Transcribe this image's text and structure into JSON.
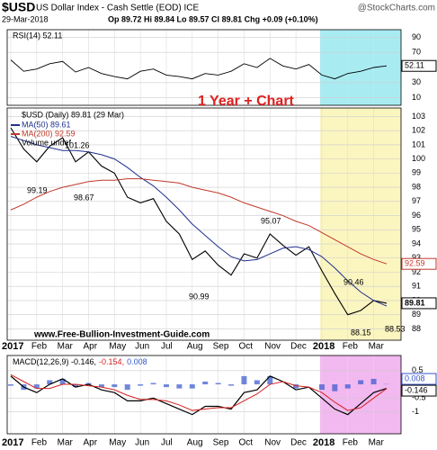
{
  "chart_data": {
    "type": "line",
    "header": {
      "symbol": "$USD",
      "name": "US Dollar Index - Cash Settle (EOD) ICE",
      "source": "@StockCharts.com",
      "date": "29-Mar-2018",
      "quote": "Op 89.72 Hi 89.84 Lo 89.57 Cl 89.81 Chg +0.09 (+0.10%)"
    },
    "categories": [
      "2017",
      null,
      "Feb",
      null,
      "Mar",
      null,
      "Apr",
      null,
      "May",
      null,
      "Jun",
      null,
      "Jul",
      null,
      "Aug",
      null,
      "Sep",
      null,
      "Oct",
      null,
      "Nov",
      null,
      "Dec",
      null,
      "2018",
      null,
      "Feb",
      null,
      "Mar",
      null
    ],
    "highlight_from": "2018",
    "rsi": {
      "legend": "RSI(14) 52.11",
      "color": "#000000",
      "values": [
        60,
        45,
        48,
        55,
        58,
        44,
        50,
        42,
        38,
        35,
        45,
        48,
        40,
        38,
        35,
        42,
        40,
        45,
        55,
        50,
        62,
        52,
        48,
        54,
        40,
        35,
        42,
        45,
        50,
        52.11
      ],
      "ylim": [
        0,
        100
      ],
      "yticks": [
        10,
        30,
        70,
        90
      ],
      "last_label": 52.11,
      "highlight_color": "#a8ecf2"
    },
    "price": {
      "legend": "$USD (Daily) 89.81 (29 Mar)",
      "volume_legend": "Volume undef",
      "title_note": "1 Year + Chart",
      "watermark": "www.Free-Bullion-Investment-Guide.com",
      "ylim": [
        87.2,
        103.6
      ],
      "yticks": [
        88,
        89,
        90,
        91,
        92,
        93,
        94,
        95,
        96,
        97,
        98,
        99,
        100,
        101,
        102,
        103
      ],
      "highlight_color": "#fbf5c0",
      "series": [
        {
          "name": "$USD",
          "color": "#000000",
          "values": [
            102.2,
            100.7,
            99.8,
            100.9,
            101.5,
            99.8,
            100.5,
            99.5,
            99.0,
            97.3,
            96.9,
            97.2,
            95.6,
            94.7,
            92.9,
            93.5,
            92.5,
            91.8,
            93.3,
            93.0,
            94.7,
            93.9,
            93.2,
            93.8,
            92.1,
            90.5,
            89.0,
            89.3,
            90.0,
            89.81
          ],
          "last_label": 89.81
        },
        {
          "name": "MA(50) 89.61",
          "color": "#1f2f8c",
          "values": [
            101.6,
            101.3,
            101.0,
            100.8,
            100.6,
            100.6,
            100.5,
            100.3,
            100.0,
            99.4,
            98.7,
            98.1,
            97.3,
            96.4,
            95.4,
            94.6,
            93.8,
            93.1,
            92.8,
            92.9,
            93.3,
            93.7,
            93.8,
            93.6,
            93.1,
            92.3,
            91.4,
            90.6,
            90.0,
            89.61
          ]
        },
        {
          "name": "MA(200) 92.59",
          "color": "#c0392b",
          "values": [
            96.4,
            96.8,
            97.3,
            97.7,
            98.0,
            98.2,
            98.4,
            98.5,
            98.5,
            98.6,
            98.6,
            98.5,
            98.4,
            98.3,
            98.0,
            97.8,
            97.6,
            97.3,
            96.9,
            96.6,
            96.3,
            96.0,
            95.6,
            95.3,
            94.8,
            94.3,
            93.8,
            93.3,
            92.9,
            92.59
          ],
          "last_label": 92.59
        }
      ],
      "annotations": [
        "99.19",
        "101.26",
        "98.67",
        "90.99",
        "95.07",
        "90.46",
        "88.15",
        "88.53"
      ]
    },
    "macd": {
      "legend": [
        "MACD(12,26,9) -0.146,",
        "-0.154,",
        "0.008"
      ],
      "ylim": [
        -1.8,
        1.05
      ],
      "yticks": [
        0.5,
        -0.5,
        -1.0
      ],
      "highlight_color": "#f2b8f0",
      "series": [
        {
          "name": "MACD",
          "color": "#000000",
          "values": [
            0.3,
            -0.1,
            -0.3,
            0.0,
            0.2,
            -0.1,
            0.0,
            -0.2,
            -0.3,
            -0.6,
            -0.6,
            -0.5,
            -0.7,
            -0.9,
            -1.1,
            -0.8,
            -0.8,
            -0.9,
            -0.3,
            -0.2,
            0.3,
            0.1,
            -0.2,
            -0.1,
            -0.5,
            -0.9,
            -1.1,
            -0.7,
            -0.3,
            -0.146
          ],
          "last_label": -0.146
        },
        {
          "name": "Signal",
          "color": "#d62020",
          "values": [
            0.35,
            0.1,
            -0.15,
            -0.15,
            0.0,
            0.0,
            -0.05,
            -0.1,
            -0.2,
            -0.4,
            -0.55,
            -0.55,
            -0.6,
            -0.75,
            -0.95,
            -0.9,
            -0.85,
            -0.85,
            -0.6,
            -0.35,
            0.0,
            0.1,
            -0.05,
            -0.1,
            -0.3,
            -0.65,
            -0.95,
            -0.85,
            -0.5,
            -0.154
          ]
        },
        {
          "name": "Histogram",
          "color": "#3355cc",
          "values": [
            -0.05,
            -0.2,
            -0.15,
            0.15,
            0.2,
            -0.1,
            0.05,
            -0.1,
            -0.1,
            -0.2,
            -0.05,
            0.05,
            -0.1,
            -0.15,
            -0.15,
            0.1,
            0.05,
            -0.05,
            0.3,
            0.15,
            0.3,
            0.0,
            -0.15,
            0.0,
            -0.2,
            -0.25,
            -0.15,
            0.15,
            0.2,
            0.008
          ],
          "last_label": 0.008
        }
      ]
    }
  }
}
